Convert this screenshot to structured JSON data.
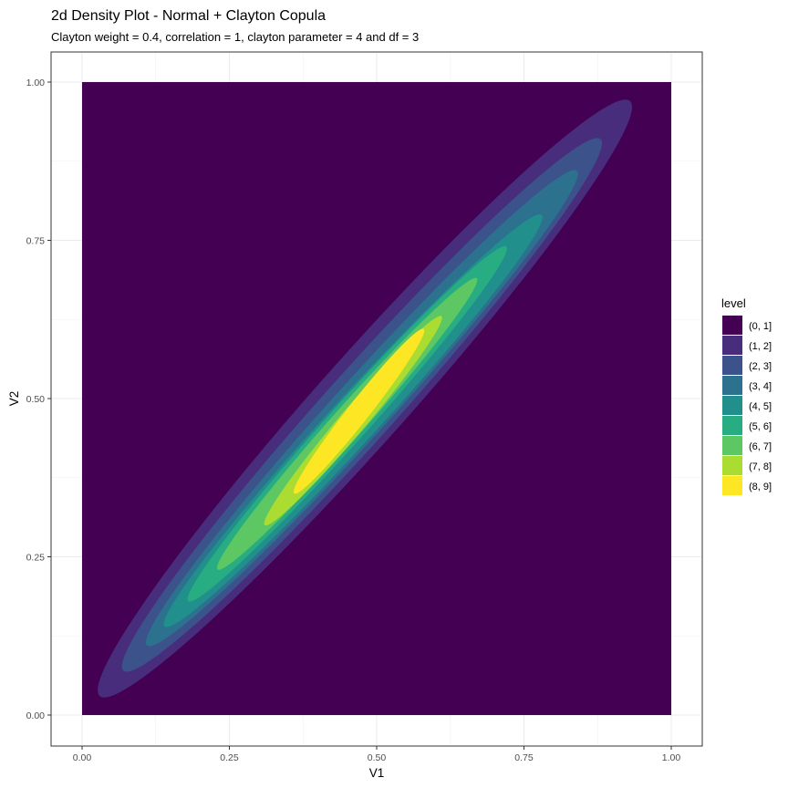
{
  "chart_data": {
    "type": "filled-contour",
    "title": "2d Density Plot - Normal + Clayton Copula",
    "subtitle": "Clayton weight = 0.4, correlation = 1, clayton parameter = 4 and df = 3",
    "xlabel": "V1",
    "ylabel": "V2",
    "xlim": [
      0,
      1
    ],
    "ylim": [
      0,
      1
    ],
    "x_ticks": [
      "0.00",
      "0.25",
      "0.50",
      "0.75",
      "1.00"
    ],
    "y_ticks": [
      "0.00",
      "0.25",
      "0.50",
      "0.75",
      "1.00"
    ],
    "grid": true,
    "legend": {
      "title": "level",
      "position": "right",
      "entries": [
        {
          "label": "(0, 1]",
          "color": "#440154"
        },
        {
          "label": "(1, 2]",
          "color": "#472D7B"
        },
        {
          "label": "(2, 3]",
          "color": "#3B528B"
        },
        {
          "label": "(3, 4]",
          "color": "#2C728E"
        },
        {
          "label": "(4, 5]",
          "color": "#21908C"
        },
        {
          "label": "(5, 6]",
          "color": "#27AD81"
        },
        {
          "label": "(6, 7]",
          "color": "#5DC863"
        },
        {
          "label": "(7, 8]",
          "color": "#AADC32"
        },
        {
          "label": "(8, 9]",
          "color": "#FDE725"
        }
      ]
    },
    "density_region": {
      "x": [
        0,
        1
      ],
      "y": [
        0,
        1
      ]
    },
    "contour_bands": [
      {
        "level": "(1, 2]",
        "start": [
          0.03,
          0.03
        ],
        "end": [
          0.93,
          0.97
        ],
        "half_width": 0.075
      },
      {
        "level": "(2, 3]",
        "start": [
          0.07,
          0.07
        ],
        "end": [
          0.88,
          0.91
        ],
        "half_width": 0.06
      },
      {
        "level": "(3, 4]",
        "start": [
          0.11,
          0.11
        ],
        "end": [
          0.84,
          0.86
        ],
        "half_width": 0.048
      },
      {
        "level": "(4, 5]",
        "start": [
          0.14,
          0.14
        ],
        "end": [
          0.78,
          0.79
        ],
        "half_width": 0.04
      },
      {
        "level": "(5, 6]",
        "start": [
          0.18,
          0.18
        ],
        "end": [
          0.72,
          0.74
        ],
        "half_width": 0.033
      },
      {
        "level": "(6, 7]",
        "start": [
          0.23,
          0.23
        ],
        "end": [
          0.67,
          0.69
        ],
        "half_width": 0.027
      },
      {
        "level": "(7, 8]",
        "start": [
          0.31,
          0.3
        ],
        "end": [
          0.61,
          0.63
        ],
        "half_width": 0.022
      },
      {
        "level": "(8, 9]",
        "start": [
          0.36,
          0.35
        ],
        "end": [
          0.58,
          0.61
        ],
        "half_width": 0.018
      }
    ]
  }
}
